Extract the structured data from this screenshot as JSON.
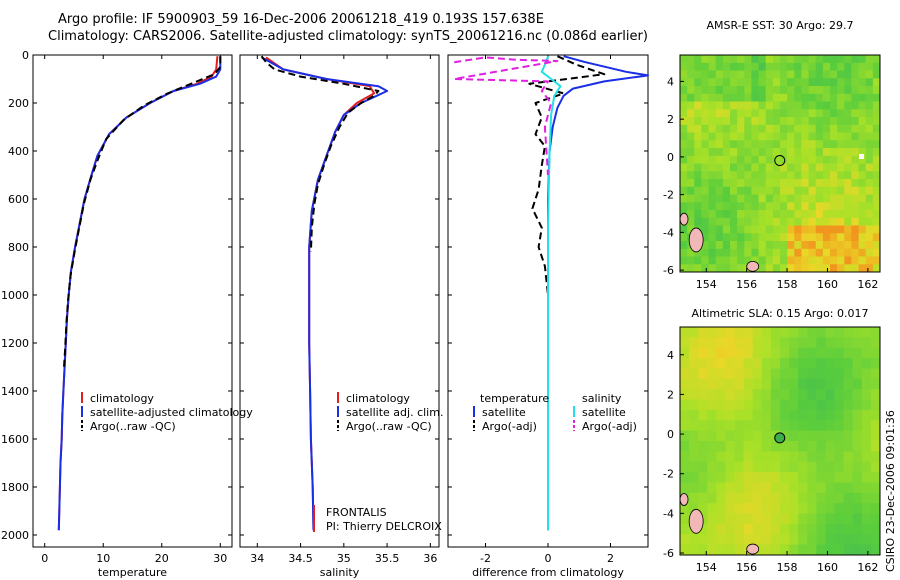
{
  "title": {
    "line1": "Argo profile: IF 5900903_59 16-Dec-2006 20061218_419 0.193S 157.638E",
    "line2": "Climatology: CARS2006. Satellite-adjusted climatology: synTS_20061216.nc (0.086d earlier)"
  },
  "credit": "CSIRO 23-Dec-2006 09:01:36",
  "colors": {
    "climatology": "#e02020",
    "satellite": "#1a2ee6",
    "argo": "#000000",
    "satellite_sal": "#22e0e8",
    "argo_sal": "#e020e0"
  },
  "chart_data": [
    {
      "type": "line",
      "name": "temperature-profile",
      "xlabel": "temperature",
      "ylabel": "",
      "xlim": [
        -2,
        32
      ],
      "ylim": [
        2050,
        0
      ],
      "y_inverted": true,
      "xticks": [
        0,
        10,
        20,
        30
      ],
      "yticks": [
        0,
        200,
        400,
        600,
        800,
        1000,
        1200,
        1400,
        1600,
        1800,
        2000
      ],
      "legend": [
        "climatology",
        "satellite-adjusted climatology",
        "Argo(..raw -QC)"
      ],
      "series": [
        {
          "name": "climatology",
          "color": "climatology",
          "dash": false,
          "points": [
            [
              29.5,
              5
            ],
            [
              29.3,
              60
            ],
            [
              28.5,
              90
            ],
            [
              26,
              120
            ],
            [
              22,
              150
            ],
            [
              18,
              200
            ],
            [
              14,
              260
            ],
            [
              11,
              330
            ],
            [
              9,
              420
            ],
            [
              8,
              500
            ],
            [
              6.8,
              600
            ],
            [
              6,
              700
            ],
            [
              5.2,
              800
            ],
            [
              4.5,
              900
            ],
            [
              4.1,
              1000
            ],
            [
              3.8,
              1100
            ],
            [
              3.6,
              1200
            ],
            [
              3.4,
              1300
            ],
            [
              3.2,
              1400
            ],
            [
              3,
              1500
            ],
            [
              2.9,
              1600
            ],
            [
              2.7,
              1700
            ],
            [
              2.6,
              1800
            ],
            [
              2.5,
              1900
            ],
            [
              2.4,
              1980
            ]
          ]
        },
        {
          "name": "satellite-adjusted climatology",
          "color": "satellite",
          "dash": false,
          "points": [
            [
              30,
              5
            ],
            [
              30,
              60
            ],
            [
              29.3,
              90
            ],
            [
              26.5,
              120
            ],
            [
              22,
              150
            ],
            [
              18,
              200
            ],
            [
              14,
              260
            ],
            [
              11,
              330
            ],
            [
              9,
              420
            ],
            [
              8,
              500
            ],
            [
              6.8,
              600
            ],
            [
              6,
              700
            ],
            [
              5.2,
              800
            ],
            [
              4.5,
              900
            ],
            [
              4.1,
              1000
            ],
            [
              3.8,
              1100
            ],
            [
              3.6,
              1200
            ],
            [
              3.4,
              1300
            ],
            [
              3.2,
              1400
            ],
            [
              3,
              1500
            ],
            [
              2.9,
              1600
            ],
            [
              2.7,
              1700
            ],
            [
              2.6,
              1800
            ],
            [
              2.5,
              1900
            ],
            [
              2.4,
              1980
            ]
          ]
        },
        {
          "name": "Argo(..raw -QC)",
          "color": "argo",
          "dash": true,
          "points": [
            [
              30,
              5
            ],
            [
              30,
              50
            ],
            [
              29,
              80
            ],
            [
              25,
              120
            ],
            [
              21,
              160
            ],
            [
              17,
              210
            ],
            [
              13.5,
              270
            ],
            [
              10.5,
              350
            ],
            [
              9,
              440
            ],
            [
              7.8,
              520
            ],
            [
              6.7,
              620
            ],
            [
              5.9,
              720
            ],
            [
              5.1,
              820
            ],
            [
              4.4,
              920
            ],
            [
              4,
              1020
            ],
            [
              3.7,
              1120
            ],
            [
              3.5,
              1220
            ],
            [
              3.3,
              1300
            ]
          ]
        }
      ]
    },
    {
      "type": "line",
      "name": "salinity-profile",
      "xlabel": "salinity",
      "ylabel": "",
      "xlim": [
        33.8,
        36.1
      ],
      "ylim": [
        2050,
        0
      ],
      "y_inverted": true,
      "xticks": [
        34,
        34.5,
        35,
        35.5,
        36
      ],
      "xtick_labels": [
        "34",
        "34.5",
        "35",
        "35.5",
        "36"
      ],
      "legend": [
        "climatology",
        "satellite adj. clim.",
        "Argo(..raw -QC)"
      ],
      "annotation": [
        "FRONTALIS",
        "PI: Thierry DELCROIX"
      ],
      "series": [
        {
          "name": "climatology",
          "color": "climatology",
          "dash": false,
          "points": [
            [
              34.1,
              10
            ],
            [
              34.3,
              60
            ],
            [
              34.8,
              100
            ],
            [
              35.3,
              130
            ],
            [
              35.35,
              160
            ],
            [
              35.15,
              200
            ],
            [
              35,
              250
            ],
            [
              34.9,
              320
            ],
            [
              34.8,
              420
            ],
            [
              34.7,
              520
            ],
            [
              34.63,
              650
            ],
            [
              34.6,
              800
            ],
            [
              34.6,
              1000
            ],
            [
              34.6,
              1200
            ],
            [
              34.61,
              1400
            ],
            [
              34.62,
              1600
            ],
            [
              34.64,
              1800
            ],
            [
              34.65,
              1980
            ]
          ]
        },
        {
          "name": "satellite adj. clim.",
          "color": "satellite",
          "dash": false,
          "points": [
            [
              34.05,
              10
            ],
            [
              34.3,
              60
            ],
            [
              34.8,
              100
            ],
            [
              35.4,
              130
            ],
            [
              35.5,
              150
            ],
            [
              35.2,
              200
            ],
            [
              35,
              250
            ],
            [
              34.9,
              320
            ],
            [
              34.8,
              420
            ],
            [
              34.7,
              520
            ],
            [
              34.63,
              650
            ],
            [
              34.6,
              800
            ],
            [
              34.6,
              1000
            ],
            [
              34.6,
              1200
            ],
            [
              34.61,
              1400
            ],
            [
              34.62,
              1600
            ],
            [
              34.64,
              1800
            ],
            [
              34.65,
              1980
            ]
          ]
        },
        {
          "name": "Argo(..raw -QC)",
          "color": "argo",
          "dash": true,
          "points": [
            [
              34.05,
              5
            ],
            [
              34.1,
              30
            ],
            [
              34.2,
              60
            ],
            [
              34.5,
              90
            ],
            [
              35,
              120
            ],
            [
              35.4,
              150
            ],
            [
              35.35,
              170
            ],
            [
              35.2,
              200
            ],
            [
              35.05,
              240
            ],
            [
              34.95,
              300
            ],
            [
              34.85,
              380
            ],
            [
              34.77,
              460
            ],
            [
              34.7,
              540
            ],
            [
              34.66,
              620
            ],
            [
              34.63,
              720
            ],
            [
              34.62,
              820
            ]
          ]
        }
      ]
    },
    {
      "type": "line",
      "name": "difference-profile",
      "xlabel": "difference from climatology",
      "ylabel": "",
      "xlim": [
        -3.2,
        3.2
      ],
      "ylim": [
        2050,
        0
      ],
      "y_inverted": true,
      "xticks": [
        -2,
        0,
        2
      ],
      "legend": [
        "temperature",
        "salinity",
        "satellite",
        "Argo(-adj)",
        "satellite",
        "Argo(-adj)"
      ],
      "series": [
        {
          "name": "temperature satellite",
          "color": "satellite",
          "dash": false,
          "points": [
            [
              0.5,
              5
            ],
            [
              1.2,
              30
            ],
            [
              2.5,
              70
            ],
            [
              3.2,
              85
            ],
            [
              1.8,
              110
            ],
            [
              0.8,
              140
            ],
            [
              0.5,
              170
            ],
            [
              0.3,
              220
            ],
            [
              0.15,
              300
            ],
            [
              0.05,
              400
            ],
            [
              0,
              600
            ],
            [
              0,
              1000
            ],
            [
              0,
              1500
            ],
            [
              0,
              1980
            ]
          ]
        },
        {
          "name": "temperature Argo(-adj)",
          "color": "argo",
          "dash": true,
          "points": [
            [
              0.3,
              5
            ],
            [
              0.9,
              40
            ],
            [
              1.8,
              80
            ],
            [
              -0.6,
              120
            ],
            [
              0.5,
              160
            ],
            [
              -0.4,
              200
            ],
            [
              -0.2,
              260
            ],
            [
              -0.4,
              330
            ],
            [
              -0.1,
              380
            ],
            [
              -0.2,
              460
            ],
            [
              -0.3,
              560
            ],
            [
              -0.5,
              640
            ],
            [
              -0.2,
              720
            ],
            [
              -0.3,
              800
            ],
            [
              -0.1,
              880
            ],
            [
              0,
              1000
            ],
            [
              0,
              1400
            ]
          ]
        },
        {
          "name": "salinity satellite",
          "color": "satellite_sal",
          "dash": false,
          "points": [
            [
              0,
              5
            ],
            [
              -0.1,
              40
            ],
            [
              -0.2,
              70
            ],
            [
              0.1,
              100
            ],
            [
              0.4,
              130
            ],
            [
              0.2,
              170
            ],
            [
              0.1,
              250
            ],
            [
              0.05,
              400
            ],
            [
              0,
              700
            ],
            [
              0,
              1200
            ],
            [
              0,
              1600
            ],
            [
              0,
              1980
            ]
          ]
        },
        {
          "name": "salinity Argo(-adj)",
          "color": "argo_sal",
          "dash": true,
          "points": [
            [
              -3,
              30
            ],
            [
              -2,
              10
            ],
            [
              -1,
              20
            ],
            [
              0.3,
              25
            ],
            [
              -3,
              100
            ],
            [
              0,
              110
            ],
            [
              -0.2,
              150
            ],
            [
              0.1,
              200
            ],
            [
              -0.1,
              300
            ],
            [
              0,
              500
            ]
          ]
        }
      ]
    },
    {
      "type": "heatmap",
      "name": "sst-map",
      "title": "AMSR-E SST: 30 Argo: 29.7",
      "xticks": [
        154,
        156,
        158,
        160,
        162
      ],
      "yticks": [
        4,
        2,
        0,
        -2,
        -4,
        -6
      ],
      "xlim": [
        152.7,
        162.6
      ],
      "ylim": [
        -6.1,
        5.4
      ],
      "marker": {
        "lon": 157.638,
        "lat": -0.193
      }
    },
    {
      "type": "heatmap",
      "name": "sla-map",
      "title": "Altimetric SLA: 0.15 Argo: 0.017",
      "xticks": [
        154,
        156,
        158,
        160,
        162
      ],
      "yticks": [
        4,
        2,
        0,
        -2,
        -4,
        -6
      ],
      "xlim": [
        152.7,
        162.6
      ],
      "ylim": [
        -6.1,
        5.4
      ],
      "marker": {
        "lon": 157.638,
        "lat": -0.193
      }
    }
  ]
}
